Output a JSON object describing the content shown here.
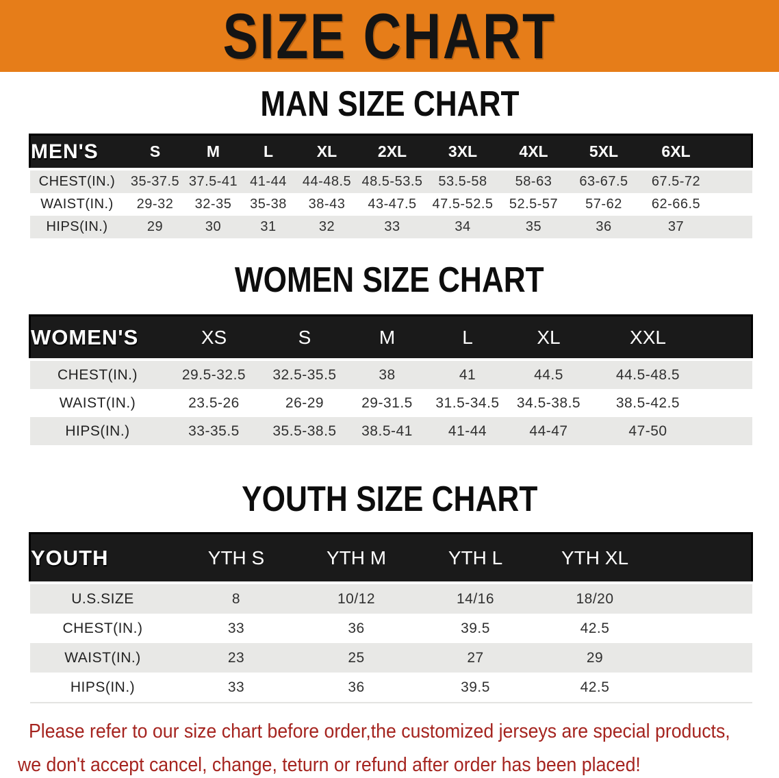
{
  "banner": {
    "title": "SIZE CHART",
    "bg_color": "#e67d19",
    "text_color": "#141414"
  },
  "sections": [
    {
      "id": "men",
      "heading": "MAN SIZE CHART",
      "table": {
        "header_label": "MEN'S",
        "sizes": [
          "S",
          "M",
          "L",
          "XL",
          "2XL",
          "3XL",
          "4XL",
          "5XL",
          "6XL"
        ],
        "rows": [
          {
            "label": "CHEST(IN.)",
            "values": [
              "35-37.5",
              "37.5-41",
              "41-44",
              "44-48.5",
              "48.5-53.5",
              "53.5-58",
              "58-63",
              "63-67.5",
              "67.5-72"
            ]
          },
          {
            "label": "WAIST(IN.)",
            "values": [
              "29-32",
              "32-35",
              "35-38",
              "38-43",
              "43-47.5",
              "47.5-52.5",
              "52.5-57",
              "57-62",
              "62-66.5"
            ]
          },
          {
            "label": "HIPS(IN.)",
            "values": [
              "29",
              "30",
              "31",
              "32",
              "33",
              "34",
              "35",
              "36",
              "37"
            ]
          }
        ]
      }
    },
    {
      "id": "women",
      "heading": "WOMEN SIZE CHART",
      "table": {
        "header_label": "WOMEN'S",
        "sizes": [
          "XS",
          "S",
          "M",
          "L",
          "XL",
          "XXL"
        ],
        "rows": [
          {
            "label": "CHEST(IN.)",
            "values": [
              "29.5-32.5",
              "32.5-35.5",
              "38",
              "41",
              "44.5",
              "44.5-48.5"
            ]
          },
          {
            "label": "WAIST(IN.)",
            "values": [
              "23.5-26",
              "26-29",
              "29-31.5",
              "31.5-34.5",
              "34.5-38.5",
              "38.5-42.5"
            ]
          },
          {
            "label": "HIPS(IN.)",
            "values": [
              "33-35.5",
              "35.5-38.5",
              "38.5-41",
              "41-44",
              "44-47",
              "47-50"
            ]
          }
        ]
      }
    },
    {
      "id": "youth",
      "heading": "YOUTH SIZE CHART",
      "table": {
        "header_label": "YOUTH",
        "sizes": [
          "YTH S",
          "YTH M",
          "YTH L",
          "YTH XL"
        ],
        "rows": [
          {
            "label": "U.S.SIZE",
            "values": [
              "8",
              "10/12",
              "14/16",
              "18/20"
            ]
          },
          {
            "label": "CHEST(IN.)",
            "values": [
              "33",
              "36",
              "39.5",
              "42.5"
            ]
          },
          {
            "label": "WAIST(IN.)",
            "values": [
              "23",
              "25",
              "27",
              "29"
            ]
          },
          {
            "label": "HIPS(IN.)",
            "values": [
              "33",
              "36",
              "39.5",
              "42.5"
            ]
          }
        ]
      }
    }
  ],
  "disclaimer": {
    "line1": "Please refer to our size chart before order,the customized jerseys are special products,",
    "line2": "we don't accept cancel, change, teturn or refund after order has been placed!",
    "color": "#a5241f"
  },
  "colors": {
    "header_bar": "#1a1a1a",
    "row_stripe": "#e8e8e6"
  }
}
